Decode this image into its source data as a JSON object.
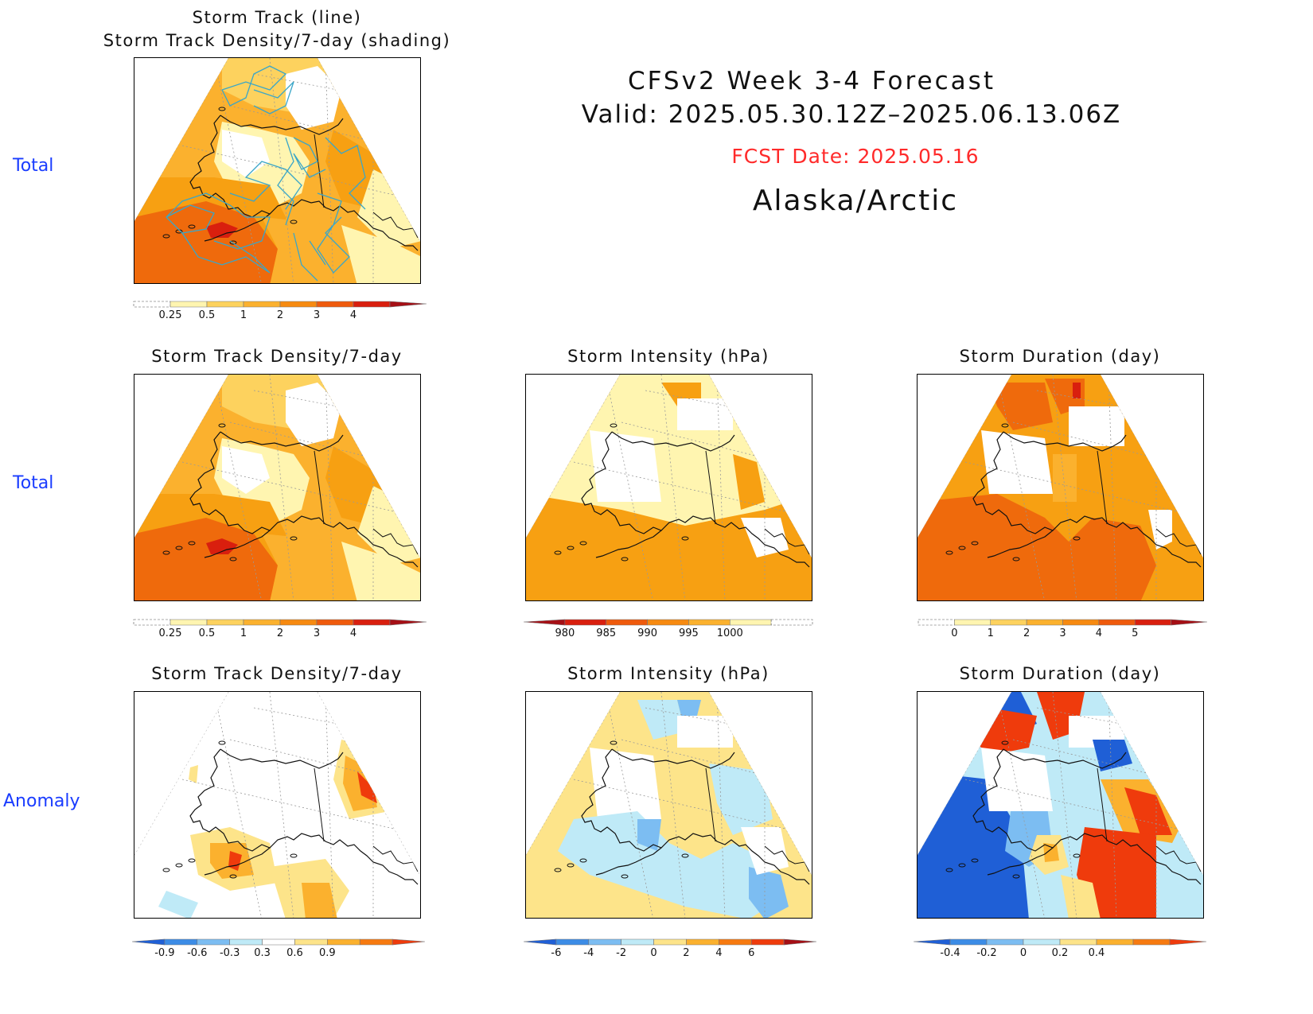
{
  "header": {
    "title": "CFSv2 Week 3-4 Forecast",
    "valid": "Valid: 2025.05.30.12Z–2025.06.13.06Z",
    "fcst_date": "FCST Date: 2025.05.16",
    "region": "Alaska/Arctic",
    "fcst_color": "#ff2a2a"
  },
  "rows": [
    {
      "label": "Total"
    },
    {
      "label": "Total"
    },
    {
      "label": "Anomaly"
    }
  ],
  "panels": {
    "top": {
      "title_line1": "Storm Track (line)",
      "title_line2": "Storm Track Density/7-day (shading)"
    },
    "density_total": {
      "title": "Storm Track Density/7-day"
    },
    "intensity_total": {
      "title": "Storm Intensity (hPa)"
    },
    "duration_total": {
      "title": "Storm Duration (day)"
    },
    "density_anom": {
      "title": "Storm Track Density/7-day"
    },
    "intensity_anom": {
      "title": "Storm Intensity (hPa)"
    },
    "duration_anom": {
      "title": "Storm Duration (day)"
    }
  },
  "colorbars": {
    "density": {
      "labels": [
        "0.25",
        "0.5",
        "1",
        "2",
        "3",
        "4"
      ],
      "colors": [
        "#ffffff",
        "#fff5b0",
        "#fdd25e",
        "#fbb12e",
        "#f78a10",
        "#ef5a0c",
        "#d91f0e",
        "#a50f15"
      ]
    },
    "intensity": {
      "labels": [
        "980",
        "985",
        "990",
        "995",
        "1000"
      ],
      "colors": [
        "#a50f15",
        "#d91f0e",
        "#ef5a0c",
        "#f78a10",
        "#fbb12e",
        "#fff5b0",
        "#ffffff"
      ]
    },
    "duration": {
      "labels": [
        "0",
        "1",
        "2",
        "3",
        "4",
        "5"
      ],
      "colors": [
        "#ffffff",
        "#fff5b0",
        "#fdd25e",
        "#fbb12e",
        "#f78a10",
        "#ef5a0c",
        "#d91f0e",
        "#a50f15"
      ]
    },
    "density_anom": {
      "labels": [
        "-0.9",
        "-0.6",
        "-0.3",
        "0.3",
        "0.6",
        "0.9"
      ],
      "colors": [
        "#1f5fd6",
        "#3c8ce6",
        "#7cbdf2",
        "#bfeaf7",
        "#ffffff",
        "#fde48a",
        "#fbb12e",
        "#f77a10",
        "#ef3b0c"
      ]
    },
    "intensity_anom": {
      "labels": [
        "-6",
        "-4",
        "-2",
        "0",
        "2",
        "4",
        "6"
      ],
      "colors": [
        "#1f5fd6",
        "#3c8ce6",
        "#7cbdf2",
        "#bfeaf7",
        "#fde48a",
        "#fbb12e",
        "#f77a10",
        "#ef3b0c",
        "#a50f15"
      ]
    },
    "duration_anom": {
      "labels": [
        "-0.4",
        "-0.2",
        "0",
        "0.2",
        "0.4"
      ],
      "colors": [
        "#1f5fd6",
        "#3c8ce6",
        "#7cbdf2",
        "#bfeaf7",
        "#fde48a",
        "#fbb12e",
        "#f77a10",
        "#ef3b0c"
      ]
    }
  }
}
